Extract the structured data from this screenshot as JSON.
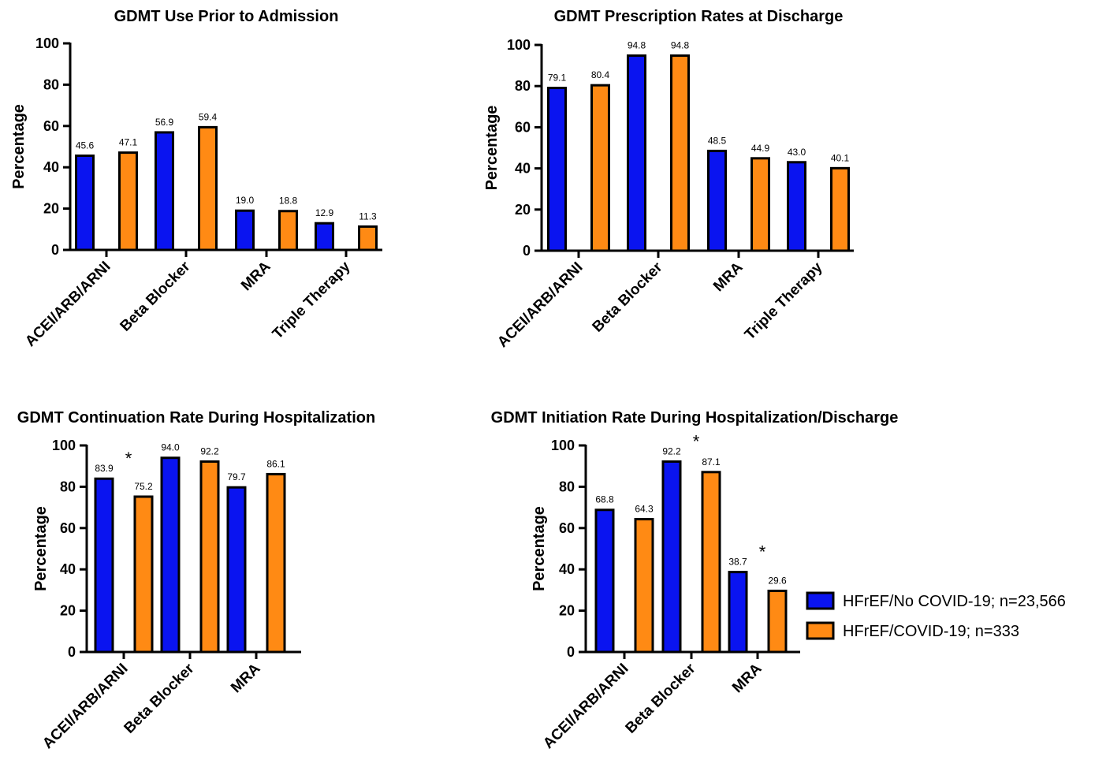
{
  "colors": {
    "no_covid": "#0A14F0",
    "covid": "#FF8A14",
    "stroke": "#000000"
  },
  "legend": {
    "entries": [
      {
        "label": "HFrEF/No COVID-19; n=23,566",
        "color": "#0A14F0"
      },
      {
        "label": "HFrEF/COVID-19; n=333",
        "color": "#FF8A14"
      }
    ]
  },
  "chart_data": [
    {
      "type": "bar",
      "title": "GDMT Use Prior to Admission",
      "ylabel": "Percentage",
      "xlabel": "",
      "ylim": [
        0,
        100
      ],
      "yticks": [
        0,
        20,
        40,
        60,
        80,
        100
      ],
      "categories": [
        "ACEI/ARB/ARNI",
        "Beta Blocker",
        "MRA",
        "Triple Therapy"
      ],
      "series": [
        {
          "name": "HFrEF/No COVID-19; n=23,566",
          "values": [
            45.6,
            56.9,
            19.0,
            12.9
          ],
          "labels": [
            "45.6",
            "56.9",
            "19.0",
            "12.9"
          ]
        },
        {
          "name": "HFrEF/COVID-19; n=333",
          "values": [
            47.1,
            59.4,
            18.8,
            11.3
          ],
          "labels": [
            "47.1",
            "59.4",
            "18.8",
            "11.3"
          ]
        }
      ],
      "significant": []
    },
    {
      "type": "bar",
      "title": "GDMT Prescription Rates at Discharge",
      "ylabel": "Percentage",
      "xlabel": "",
      "ylim": [
        0,
        100
      ],
      "yticks": [
        0,
        20,
        40,
        60,
        80,
        100
      ],
      "categories": [
        "ACEI/ARB/ARNI",
        "Beta Blocker",
        "MRA",
        "Triple Therapy"
      ],
      "series": [
        {
          "name": "HFrEF/No COVID-19; n=23,566",
          "values": [
            79.1,
            94.8,
            48.5,
            43.0
          ],
          "labels": [
            "79.1",
            "94.8",
            "48.5",
            "43.0"
          ]
        },
        {
          "name": "HFrEF/COVID-19; n=333",
          "values": [
            80.4,
            94.8,
            44.9,
            40.1
          ],
          "labels": [
            "80.4",
            "94.8",
            "44.9",
            "40.1"
          ]
        }
      ],
      "significant": []
    },
    {
      "type": "bar",
      "title": "GDMT Continuation Rate During Hospitalization",
      "ylabel": "Percentage",
      "xlabel": "",
      "ylim": [
        0,
        100
      ],
      "yticks": [
        0,
        20,
        40,
        60,
        80,
        100
      ],
      "categories": [
        "ACEI/ARB/ARNI",
        "Beta Blocker",
        "MRA"
      ],
      "series": [
        {
          "name": "HFrEF/No COVID-19; n=23,566",
          "values": [
            83.9,
            94.0,
            79.7
          ],
          "labels": [
            "83.9",
            "94.0",
            "79.7"
          ]
        },
        {
          "name": "HFrEF/COVID-19; n=333",
          "values": [
            75.2,
            92.2,
            86.1
          ],
          "labels": [
            "75.2",
            "92.2",
            "86.1"
          ]
        }
      ],
      "significant": [
        "ACEI/ARB/ARNI"
      ],
      "significance_marker": "*"
    },
    {
      "type": "bar",
      "title": "GDMT Initiation Rate During Hospitalization/Discharge",
      "ylabel": "Percentage",
      "xlabel": "",
      "ylim": [
        0,
        100
      ],
      "yticks": [
        0,
        20,
        40,
        60,
        80,
        100
      ],
      "categories": [
        "ACEI/ARB/ARNI",
        "Beta Blocker",
        "MRA"
      ],
      "series": [
        {
          "name": "HFrEF/No COVID-19; n=23,566",
          "values": [
            68.8,
            92.2,
            38.7
          ],
          "labels": [
            "68.8",
            "92.2",
            "38.7"
          ]
        },
        {
          "name": "HFrEF/COVID-19; n=333",
          "values": [
            64.3,
            87.1,
            29.6
          ],
          "labels": [
            "64.3",
            "87.1",
            "29.6"
          ]
        }
      ],
      "significant": [
        "Beta Blocker",
        "MRA"
      ],
      "significance_marker": "*"
    }
  ]
}
